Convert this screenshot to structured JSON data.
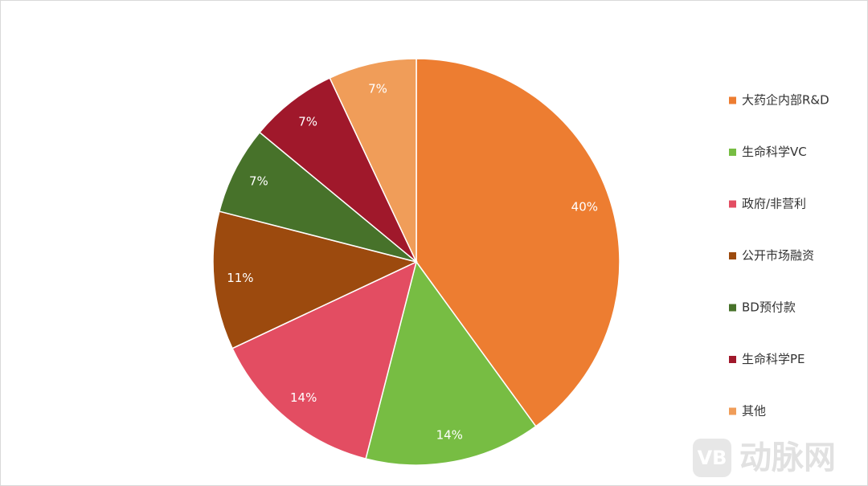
{
  "chart_data": {
    "type": "pie",
    "categories": [
      "大药企内部R&D",
      "生命科学VC",
      "政府/非营利",
      "公开市场融资",
      "BD预付款",
      "生命科学PE",
      "其他"
    ],
    "values": [
      40,
      14,
      14,
      11,
      7,
      7,
      7
    ],
    "value_labels": [
      "40%",
      "14%",
      "14%",
      "11%",
      "7%",
      "7%",
      "7%"
    ],
    "colors": [
      "#ED7D31",
      "#77BD43",
      "#E34D62",
      "#9C4A0E",
      "#47722A",
      "#A0182B",
      "#F09D59"
    ],
    "legend": "right"
  },
  "watermark": {
    "logo": "VB",
    "text": "动脉网"
  }
}
